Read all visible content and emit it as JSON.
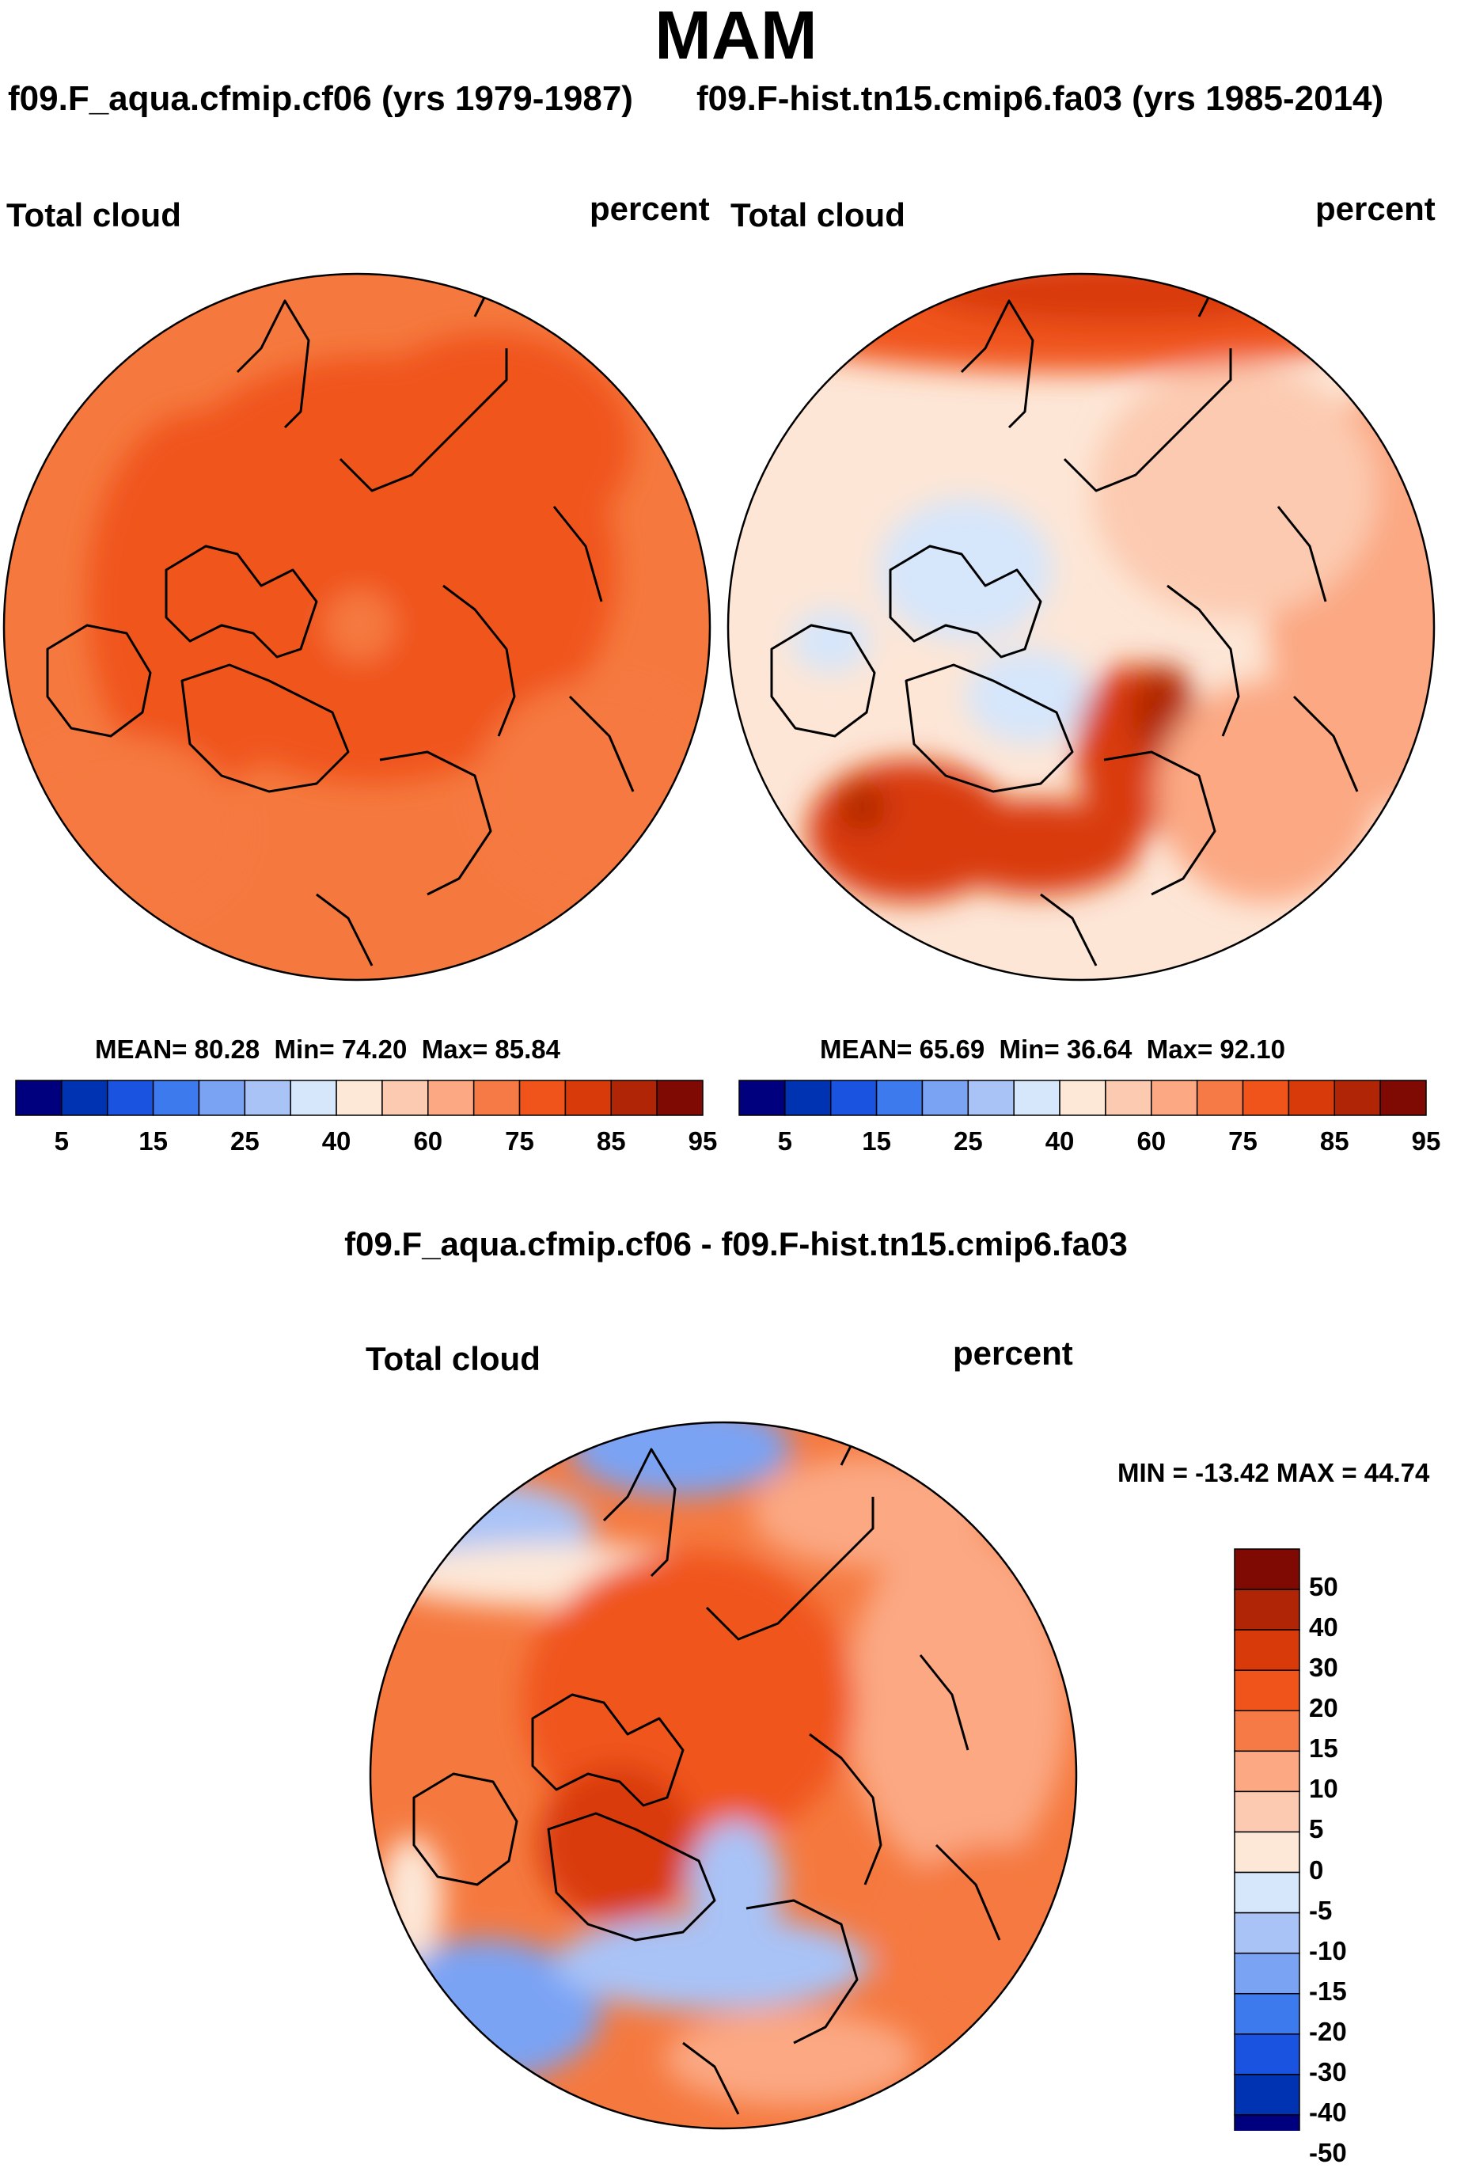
{
  "season": "MAM",
  "panels": [
    {
      "run_title": "f09.F_aqua.cfmip.cf06 (yrs 1979-1987)",
      "variable": "Total cloud",
      "units": "percent",
      "stats": {
        "mean_label": "MEAN=",
        "mean": "80.28",
        "min_label": "Min=",
        "min": "74.20",
        "max_label": "Max=",
        "max": "85.84"
      }
    },
    {
      "run_title": "f09.F-hist.tn15.cmip6.fa03 (yrs 1985-2014)",
      "variable": "Total cloud",
      "units": "percent",
      "stats": {
        "mean_label": "MEAN=",
        "mean": "65.69",
        "min_label": "Min=",
        "min": "36.64",
        "max_label": "Max=",
        "max": "92.10"
      }
    }
  ],
  "diff": {
    "title": "f09.F_aqua.cfmip.cf06 - f09.F-hist.tn15.cmip6.fa03",
    "variable": "Total cloud",
    "units": "percent",
    "minmax": "MIN = -13.42 MAX =  44.74"
  },
  "colorbar_abs": {
    "tick_labels": [
      "5",
      "15",
      "25",
      "40",
      "60",
      "75",
      "85",
      "95"
    ],
    "colors": [
      "#00007f",
      "#0033b2",
      "#1a53e0",
      "#3d7aee",
      "#7aa3f4",
      "#a9c3f7",
      "#d6e6fb",
      "#fde8d8",
      "#fccab0",
      "#fba883",
      "#f57a46",
      "#f0541a",
      "#d93a0a",
      "#b02505",
      "#7f0a04"
    ]
  },
  "colorbar_diff": {
    "tick_labels": [
      "50",
      "40",
      "30",
      "20",
      "15",
      "10",
      "5",
      "0",
      "-5",
      "-10",
      "-15",
      "-20",
      "-30",
      "-40",
      "-50"
    ],
    "colors": [
      "#7f0a04",
      "#b02505",
      "#d93a0a",
      "#f0541a",
      "#f57a46",
      "#fba883",
      "#fccab0",
      "#fde8d8",
      "#d6e6fb",
      "#a9c3f7",
      "#7aa3f4",
      "#3d7aee",
      "#1a53e0",
      "#0033b2",
      "#00007f"
    ]
  },
  "map_palette": {
    "ocean_bg_left": "#f5793f",
    "ocean_bg_right": "#fde6d6",
    "ocean_bg_diff": "#f5793f",
    "coast": "#000000"
  }
}
